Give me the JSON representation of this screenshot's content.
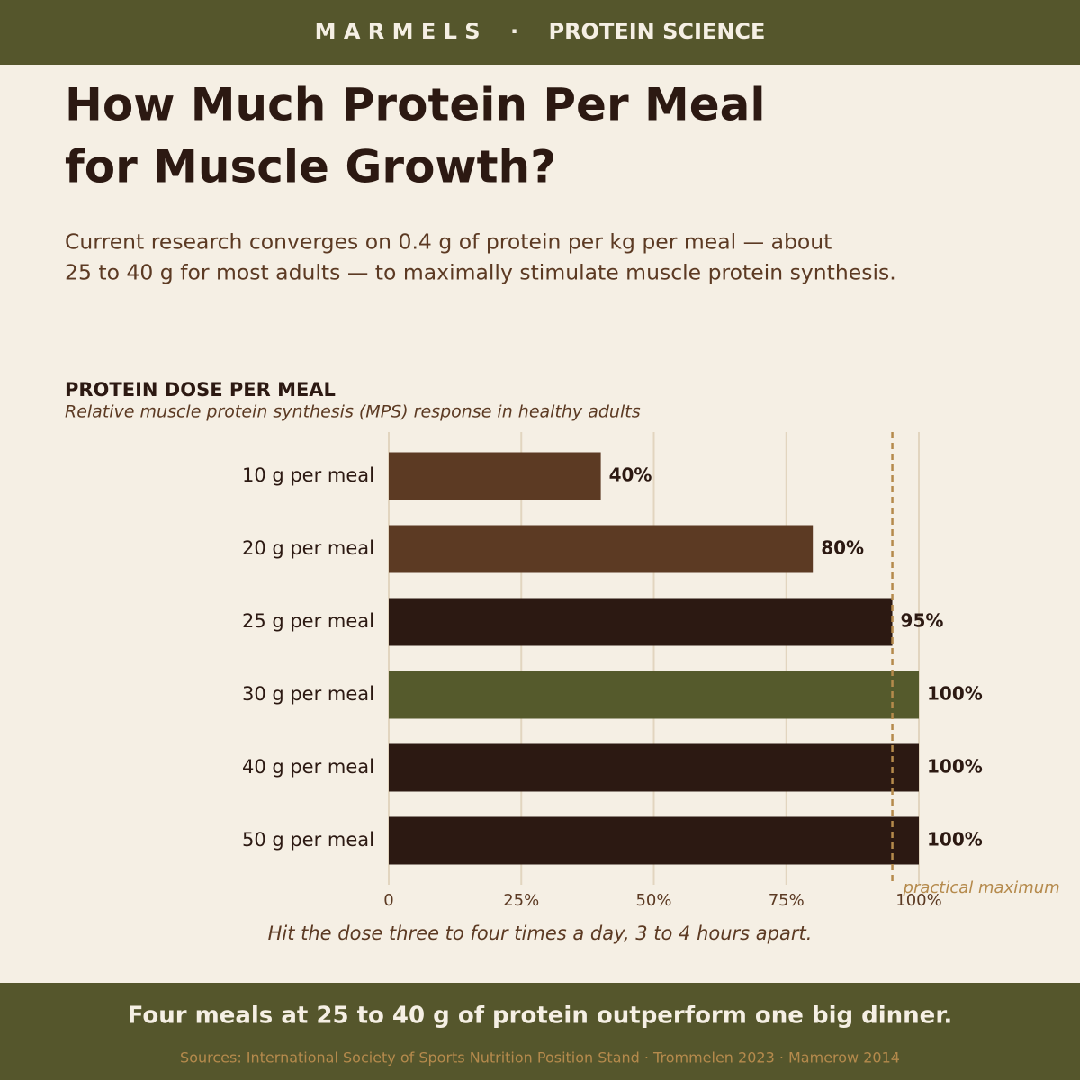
{
  "header": {
    "text": "M A R M E L S    ·    PROTEIN SCIENCE"
  },
  "title_lines": [
    "How Much Protein Per Meal",
    "for Muscle Growth?"
  ],
  "intro_lines": [
    "Current research converges on 0.4 g of protein per kg per meal — about",
    "25 to 40 g for most adults — to maximally stimulate muscle protein synthesis."
  ],
  "chart_data": {
    "type": "barh",
    "title": "PROTEIN DOSE PER MEAL",
    "subtitle": "Relative muscle protein synthesis (MPS) response in healthy adults",
    "categories": [
      "10 g per meal",
      "20 g per meal",
      "25 g per meal",
      "30 g per meal",
      "40 g per meal",
      "50 g per meal"
    ],
    "values": [
      40,
      80,
      95,
      100,
      100,
      100
    ],
    "value_labels": [
      "40%",
      "80%",
      "95%",
      "100%",
      "100%",
      "100%"
    ],
    "colors": [
      "#5c3a23",
      "#5c3a23",
      "#2c1912",
      "#555a2c",
      "#2c1912",
      "#2c1912"
    ],
    "xlim": [
      0,
      100
    ],
    "xticks": [
      0,
      {
        "value": 25,
        "label": "25%"
      },
      {
        "value": 50,
        "label": "50%"
      },
      {
        "value": 75,
        "label": "75%"
      },
      {
        "value": 100,
        "label": "100%"
      }
    ],
    "grid": true,
    "reference_line": {
      "value": 95,
      "label": "practical maximum",
      "color": "#b58a4c"
    },
    "caption": "Hit the dose three to four times a day, 3 to 4 hours apart."
  },
  "footer": {
    "headline": "Four meals at 25 to 40 g of protein outperform one big dinner.",
    "sources": "Sources: International Society of Sports Nutrition Position Stand · Trommelen 2023 · Mamerow 2014"
  }
}
